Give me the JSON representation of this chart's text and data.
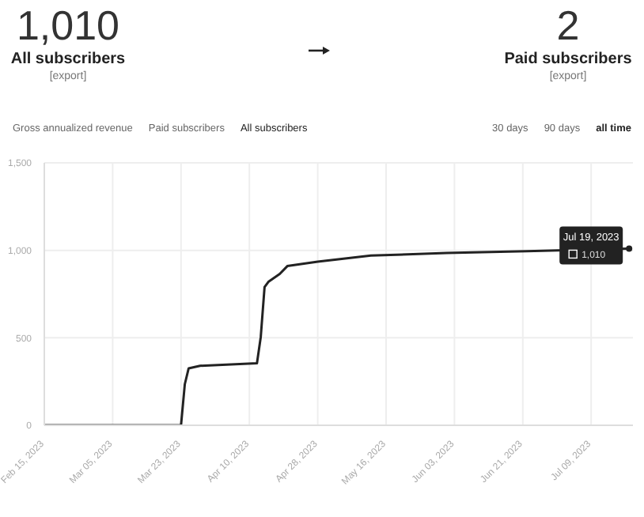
{
  "chart_data": {
    "type": "line",
    "annotations": [
      "1,010",
      "All subscribers",
      "[export]",
      "2",
      "Paid subscribers",
      "[export]",
      "Gross annualized revenue",
      "Paid subscribers",
      "All subscribers",
      "30 days",
      "90 days",
      "all time",
      {
        "text": "Jul 19, 2023",
        "x": "2023-07-19",
        "y": 1010
      },
      {
        "text": "1,010",
        "x": "2023-07-19",
        "y": 1010
      }
    ],
    "x": [
      "2023-02-15",
      "2023-03-23",
      "2023-03-24",
      "2023-03-25",
      "2023-03-28",
      "2023-04-12",
      "2023-04-13",
      "2023-04-14",
      "2023-04-15",
      "2023-04-18",
      "2023-04-20",
      "2023-04-28",
      "2023-05-12",
      "2023-06-01",
      "2023-06-22",
      "2023-07-19"
    ],
    "series": [
      {
        "color": "#222222",
        "values": [
          0,
          0,
          235,
          325,
          340,
          355,
          505,
          790,
          820,
          865,
          910,
          935,
          970,
          985,
          995,
          1010
        ]
      }
    ],
    "xlim": [
      "2023-02-15",
      "2023-07-20"
    ],
    "xticks": [
      {
        "value": "2023-02-15",
        "label": "Feb 15, 2023"
      },
      {
        "value": "2023-03-05",
        "label": "Mar 05, 2023"
      },
      {
        "value": "2023-03-23",
        "label": "Mar 23, 2023"
      },
      {
        "value": "2023-04-10",
        "label": "Apr 10, 2023"
      },
      {
        "value": "2023-04-28",
        "label": "Apr 28, 2023"
      },
      {
        "value": "2023-05-16",
        "label": "May 16, 2023"
      },
      {
        "value": "2023-06-03",
        "label": "Jun 03, 2023"
      },
      {
        "value": "2023-06-21",
        "label": "Jun 21, 2023"
      },
      {
        "value": "2023-07-09",
        "label": "Jul 09, 2023"
      }
    ],
    "ylim": [
      0,
      1500
    ],
    "yticks": [
      0,
      500,
      {
        "value": 1000,
        "label": "1,000"
      },
      {
        "value": 1500,
        "label": "1,500"
      }
    ],
    "grid": true,
    "marker": "none",
    "line_style": "solid"
  }
}
